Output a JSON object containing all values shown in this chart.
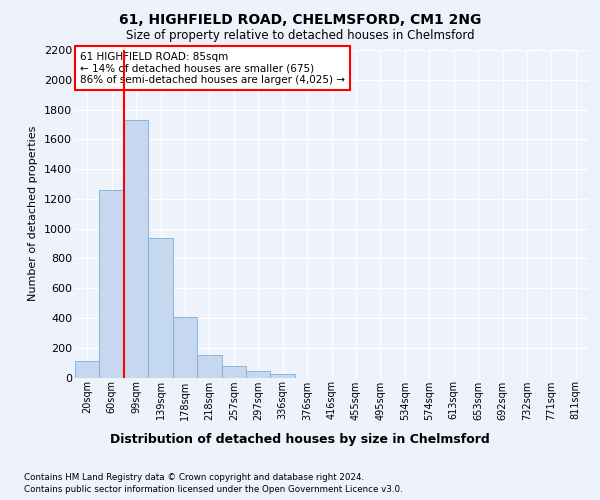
{
  "title": "61, HIGHFIELD ROAD, CHELMSFORD, CM1 2NG",
  "subtitle": "Size of property relative to detached houses in Chelmsford",
  "xlabel": "Distribution of detached houses by size in Chelmsford",
  "ylabel": "Number of detached properties",
  "categories": [
    "20sqm",
    "60sqm",
    "99sqm",
    "139sqm",
    "178sqm",
    "218sqm",
    "257sqm",
    "297sqm",
    "336sqm",
    "376sqm",
    "416sqm",
    "455sqm",
    "495sqm",
    "534sqm",
    "574sqm",
    "613sqm",
    "653sqm",
    "692sqm",
    "732sqm",
    "771sqm",
    "811sqm"
  ],
  "bar_heights": [
    110,
    1260,
    1730,
    940,
    405,
    150,
    75,
    42,
    25,
    0,
    0,
    0,
    0,
    0,
    0,
    0,
    0,
    0,
    0,
    0,
    0
  ],
  "bar_color": "#c5d8f0",
  "bar_edge_color": "#7bafd4",
  "vline_color": "red",
  "vline_x": 2.0,
  "ylim": [
    0,
    2200
  ],
  "yticks": [
    0,
    200,
    400,
    600,
    800,
    1000,
    1200,
    1400,
    1600,
    1800,
    2000,
    2200
  ],
  "annotation_title": "61 HIGHFIELD ROAD: 85sqm",
  "annotation_line1": "← 14% of detached houses are smaller (675)",
  "annotation_line2": "86% of semi-detached houses are larger (4,025) →",
  "annotation_box_color": "white",
  "annotation_box_edge": "red",
  "footnote1": "Contains HM Land Registry data © Crown copyright and database right 2024.",
  "footnote2": "Contains public sector information licensed under the Open Government Licence v3.0.",
  "bg_color": "#eef2fb",
  "plot_bg_color": "#eef2fb"
}
